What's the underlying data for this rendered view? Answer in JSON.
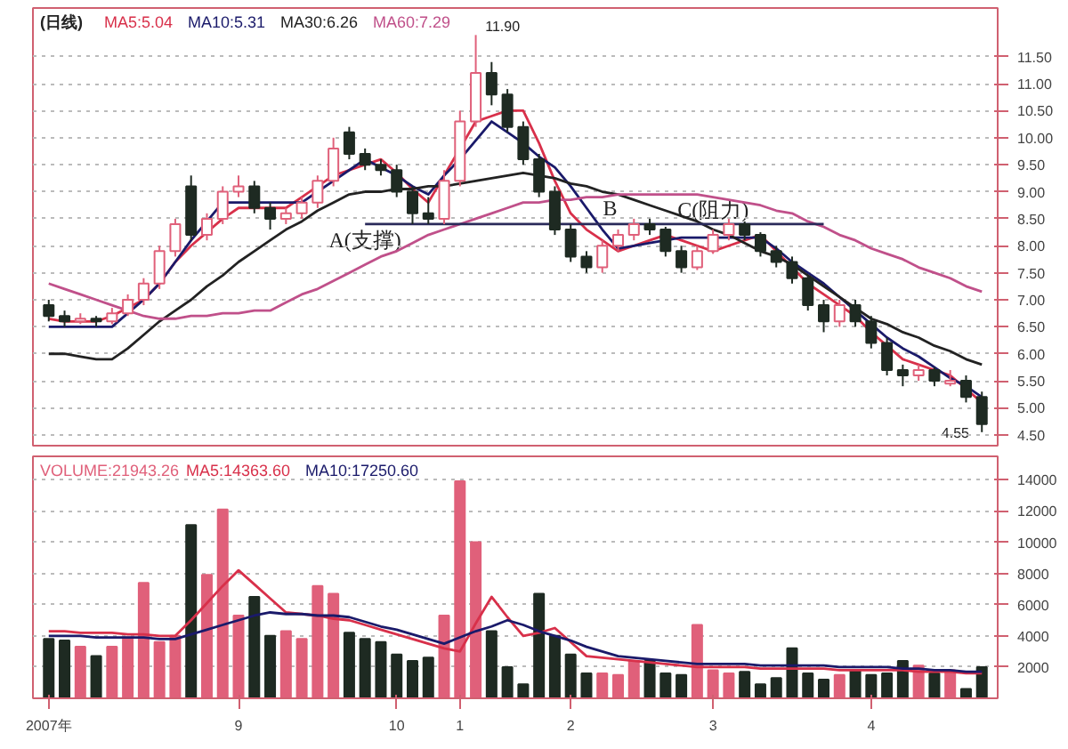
{
  "chart_data": [
    {
      "type": "candlestick",
      "title": "(日线)",
      "legend": "top left",
      "grid": "y",
      "tick_labels": "y",
      "categories": [
        null,
        null,
        null,
        null,
        null,
        null,
        null,
        null,
        null,
        null,
        null,
        null,
        null,
        null,
        null,
        null,
        null,
        null,
        null,
        null,
        null,
        null,
        null,
        null,
        null,
        null,
        null,
        null,
        null,
        null,
        null,
        null,
        null,
        null,
        null,
        null,
        null,
        null,
        null,
        null,
        null,
        null,
        null,
        null,
        null,
        null,
        null,
        null,
        null,
        null,
        null,
        null,
        null,
        null,
        null,
        null,
        null,
        null,
        null,
        null
      ],
      "ohlc": [
        [
          6.9,
          7.0,
          6.6,
          6.7
        ],
        [
          6.7,
          6.8,
          6.5,
          6.6
        ],
        [
          6.6,
          6.75,
          6.55,
          6.65
        ],
        [
          6.65,
          6.7,
          6.5,
          6.6
        ],
        [
          6.6,
          6.85,
          6.55,
          6.75
        ],
        [
          6.75,
          7.1,
          6.7,
          7.0
        ],
        [
          7.0,
          7.4,
          6.9,
          7.3
        ],
        [
          7.3,
          8.0,
          7.2,
          7.9
        ],
        [
          7.9,
          8.5,
          7.8,
          8.4
        ],
        [
          9.1,
          9.3,
          8.1,
          8.2
        ],
        [
          8.2,
          8.6,
          8.1,
          8.5
        ],
        [
          8.5,
          9.1,
          8.4,
          9.0
        ],
        [
          9.0,
          9.3,
          8.9,
          9.1
        ],
        [
          9.1,
          9.2,
          8.6,
          8.7
        ],
        [
          8.7,
          8.8,
          8.3,
          8.5
        ],
        [
          8.5,
          8.7,
          8.4,
          8.6
        ],
        [
          8.6,
          8.9,
          8.5,
          8.8
        ],
        [
          8.8,
          9.3,
          8.7,
          9.2
        ],
        [
          9.2,
          10.0,
          9.1,
          9.8
        ],
        [
          10.1,
          10.2,
          9.6,
          9.7
        ],
        [
          9.7,
          9.8,
          9.4,
          9.5
        ],
        [
          9.5,
          9.6,
          9.3,
          9.4
        ],
        [
          9.4,
          9.5,
          8.9,
          9.0
        ],
        [
          9.0,
          9.1,
          8.4,
          8.6
        ],
        [
          8.6,
          8.9,
          8.4,
          8.5
        ],
        [
          8.5,
          9.4,
          8.4,
          9.2
        ],
        [
          9.2,
          10.5,
          9.1,
          10.3
        ],
        [
          10.3,
          11.9,
          10.2,
          11.2
        ],
        [
          11.2,
          11.4,
          10.6,
          10.8
        ],
        [
          10.8,
          10.9,
          10.1,
          10.2
        ],
        [
          10.2,
          10.3,
          9.5,
          9.6
        ],
        [
          9.6,
          9.7,
          8.9,
          9.0
        ],
        [
          9.0,
          9.1,
          8.2,
          8.3
        ],
        [
          8.3,
          8.4,
          7.7,
          7.8
        ],
        [
          7.8,
          7.9,
          7.5,
          7.6
        ],
        [
          7.6,
          8.1,
          7.5,
          8.0
        ],
        [
          8.0,
          8.3,
          7.9,
          8.2
        ],
        [
          8.2,
          8.5,
          8.1,
          8.4
        ],
        [
          8.4,
          8.5,
          8.2,
          8.3
        ],
        [
          8.3,
          8.35,
          7.8,
          7.9
        ],
        [
          7.9,
          8.0,
          7.5,
          7.6
        ],
        [
          7.6,
          8.0,
          7.55,
          7.9
        ],
        [
          7.9,
          8.3,
          7.85,
          8.2
        ],
        [
          8.2,
          8.5,
          8.1,
          8.4
        ],
        [
          8.4,
          8.45,
          8.1,
          8.2
        ],
        [
          8.2,
          8.25,
          7.8,
          7.9
        ],
        [
          7.9,
          8.0,
          7.6,
          7.7
        ],
        [
          7.7,
          7.8,
          7.3,
          7.4
        ],
        [
          7.4,
          7.45,
          6.8,
          6.9
        ],
        [
          6.9,
          7.0,
          6.4,
          6.6
        ],
        [
          6.6,
          7.0,
          6.5,
          6.9
        ],
        [
          6.9,
          7.0,
          6.5,
          6.6
        ],
        [
          6.6,
          6.7,
          6.1,
          6.2
        ],
        [
          6.2,
          6.3,
          5.6,
          5.7
        ],
        [
          5.7,
          5.8,
          5.4,
          5.6
        ],
        [
          5.6,
          5.8,
          5.5,
          5.7
        ],
        [
          5.7,
          5.75,
          5.4,
          5.5
        ],
        [
          5.45,
          5.7,
          5.4,
          5.5
        ],
        [
          5.5,
          5.6,
          5.1,
          5.2
        ],
        [
          5.2,
          5.3,
          4.55,
          4.7
        ]
      ],
      "colors": [
        "#1e2a22",
        "#1e2a22",
        "#e0607a",
        "#1e2a22",
        "#e0607a",
        "#e0607a",
        "#e0607a",
        "#e0607a",
        "#e0607a",
        "#1e2a22",
        "#e0607a",
        "#e0607a",
        "#e0607a",
        "#1e2a22",
        "#1e2a22",
        "#e0607a",
        "#e0607a",
        "#e0607a",
        "#e0607a",
        "#1e2a22",
        "#1e2a22",
        "#1e2a22",
        "#1e2a22",
        "#1e2a22",
        "#1e2a22",
        "#e0607a",
        "#e0607a",
        "#e0607a",
        "#1e2a22",
        "#1e2a22",
        "#1e2a22",
        "#1e2a22",
        "#1e2a22",
        "#1e2a22",
        "#1e2a22",
        "#e0607a",
        "#e0607a",
        "#e0607a",
        "#1e2a22",
        "#1e2a22",
        "#1e2a22",
        "#e0607a",
        "#e0607a",
        "#e0607a",
        "#1e2a22",
        "#1e2a22",
        "#1e2a22",
        "#1e2a22",
        "#1e2a22",
        "#1e2a22",
        "#e0607a",
        "#1e2a22",
        "#1e2a22",
        "#1e2a22",
        "#1e2a22",
        "#e0607a",
        "#1e2a22",
        "#e0607a",
        "#1e2a22",
        "#1e2a22"
      ],
      "series": [
        {
          "name": "MA5:5.04",
          "type": "line",
          "color": "#d8304a",
          "values": [
            6.65,
            6.6,
            6.6,
            6.6,
            6.7,
            6.85,
            7.0,
            7.3,
            7.7,
            8.0,
            8.25,
            8.5,
            8.7,
            8.7,
            8.7,
            8.7,
            8.9,
            9.1,
            9.3,
            9.4,
            9.5,
            9.6,
            9.35,
            9.05,
            8.8,
            9.3,
            9.8,
            10.3,
            10.4,
            10.5,
            10.5,
            9.9,
            9.2,
            8.6,
            8.3,
            8.1,
            7.9,
            8.0,
            8.1,
            8.2,
            8.1,
            8.0,
            7.9,
            8.0,
            8.1,
            8.2,
            7.9,
            7.6,
            7.3,
            7.1,
            6.9,
            6.7,
            6.4,
            6.15,
            5.9,
            5.8,
            5.7,
            5.6,
            5.35,
            5.1
          ]
        },
        {
          "name": "MA10:5.31",
          "type": "line",
          "color": "#1a1a6a",
          "values": [
            6.5,
            6.5,
            6.5,
            6.5,
            6.5,
            6.75,
            7.0,
            7.3,
            7.7,
            8.1,
            8.45,
            8.8,
            8.8,
            8.8,
            8.8,
            8.8,
            8.8,
            9.0,
            9.2,
            9.4,
            9.6,
            9.45,
            9.3,
            9.1,
            8.95,
            9.3,
            9.6,
            9.95,
            10.3,
            10.1,
            9.9,
            9.65,
            9.45,
            9.1,
            8.7,
            8.3,
            7.95,
            8.0,
            8.05,
            8.1,
            8.15,
            8.15,
            8.15,
            8.15,
            8.15,
            8.15,
            7.95,
            7.7,
            7.5,
            7.3,
            7.05,
            6.8,
            6.55,
            6.3,
            6.1,
            5.95,
            5.75,
            5.55,
            5.4,
            5.2
          ]
        },
        {
          "name": "MA30:6.26",
          "type": "line",
          "color": "#222222",
          "values": [
            6.0,
            6.0,
            5.95,
            5.9,
            5.9,
            6.1,
            6.35,
            6.6,
            6.8,
            7.0,
            7.25,
            7.45,
            7.7,
            7.9,
            8.1,
            8.3,
            8.45,
            8.65,
            8.8,
            8.95,
            9.0,
            9.0,
            9.05,
            9.05,
            9.1,
            9.1,
            9.15,
            9.2,
            9.25,
            9.3,
            9.35,
            9.3,
            9.25,
            9.15,
            9.1,
            9.0,
            8.95,
            8.85,
            8.75,
            8.65,
            8.55,
            8.45,
            8.3,
            8.2,
            8.05,
            7.9,
            7.8,
            7.65,
            7.45,
            7.25,
            7.05,
            6.85,
            6.65,
            6.55,
            6.4,
            6.3,
            6.15,
            6.05,
            5.9,
            5.8
          ]
        },
        {
          "name": "MA60:7.29",
          "type": "line",
          "color": "#c0508a",
          "values": [
            7.3,
            7.2,
            7.1,
            7.0,
            6.9,
            6.8,
            6.7,
            6.65,
            6.65,
            6.7,
            6.7,
            6.75,
            6.75,
            6.8,
            6.8,
            6.95,
            7.1,
            7.2,
            7.35,
            7.5,
            7.65,
            7.8,
            7.9,
            8.05,
            8.2,
            8.3,
            8.4,
            8.5,
            8.6,
            8.7,
            8.8,
            8.8,
            8.85,
            8.85,
            8.9,
            8.9,
            8.95,
            8.95,
            8.95,
            8.95,
            8.95,
            8.95,
            8.9,
            8.85,
            8.8,
            8.75,
            8.65,
            8.6,
            8.45,
            8.35,
            8.2,
            8.1,
            7.95,
            7.85,
            7.75,
            7.6,
            7.5,
            7.4,
            7.25,
            7.15
          ]
        },
        {
          "type": "line",
          "color": "#2a2a5a",
          "values": [
            null,
            null,
            null,
            null,
            null,
            null,
            null,
            null,
            null,
            null,
            null,
            null,
            null,
            null,
            null,
            null,
            null,
            null,
            null,
            null,
            8.4,
            8.4,
            8.4,
            8.4,
            8.4,
            8.4,
            8.4,
            8.4,
            8.4,
            8.4,
            8.4,
            8.4,
            8.4,
            8.4,
            8.4,
            8.4,
            8.4,
            8.4,
            8.4,
            8.4,
            8.4,
            8.4,
            8.4,
            8.4,
            8.4,
            8.4,
            8.4,
            8.4,
            8.4,
            8.4,
            null,
            null,
            null,
            null,
            null,
            null,
            null,
            null,
            null,
            null
          ]
        }
      ],
      "annotations": [
        {
          "text": "A(支撑)",
          "y": 8.4
        },
        {
          "text": "B",
          "y": 8.4
        },
        {
          "text": "C(阻力)",
          "y": 8.4
        },
        "11.90",
        "4.55"
      ],
      "ylim": [
        4.3,
        12.4
      ],
      "yticks": [
        {
          "value": 4.5,
          "label": "4.50"
        },
        {
          "value": 5.0,
          "label": "5.00"
        },
        {
          "value": 5.5,
          "label": "5.50"
        },
        {
          "value": 6.0,
          "label": "6.00"
        },
        {
          "value": 6.5,
          "label": "6.50"
        },
        {
          "value": 7.0,
          "label": "7.00"
        },
        {
          "value": 7.5,
          "label": "7.50"
        },
        {
          "value": 8.0,
          "label": "8.00"
        },
        {
          "value": 8.5,
          "label": "8.50"
        },
        {
          "value": 9.0,
          "label": "9.00"
        },
        {
          "value": 9.5,
          "label": "9.50"
        },
        {
          "value": 10.0,
          "label": "10.00"
        },
        {
          "value": 10.5,
          "label": "10.50"
        },
        {
          "value": 11.0,
          "label": "11.00"
        },
        {
          "value": 11.5,
          "label": "11.50"
        }
      ]
    },
    {
      "type": "bar",
      "legend": "top left",
      "grid": "y",
      "categories": [
        "2007年",
        null,
        null,
        null,
        null,
        null,
        null,
        null,
        null,
        null,
        null,
        null,
        "9",
        null,
        null,
        null,
        null,
        null,
        null,
        null,
        null,
        null,
        "10",
        null,
        null,
        null,
        "1",
        null,
        null,
        null,
        null,
        null,
        null,
        "2",
        null,
        null,
        null,
        null,
        null,
        null,
        null,
        null,
        "3",
        null,
        null,
        null,
        null,
        null,
        null,
        null,
        null,
        null,
        "4",
        null,
        null,
        null,
        null,
        null,
        null,
        null
      ],
      "series": [
        {
          "name": "VOLUME:21943.26",
          "type": "bar",
          "color": "#e0607a",
          "values": [
            3800,
            3700,
            3300,
            2700,
            3300,
            3900,
            7400,
            3600,
            4000,
            11100,
            7900,
            12100,
            5300,
            6500,
            4000,
            4300,
            3800,
            7200,
            6700,
            4200,
            3800,
            3600,
            2800,
            2400,
            2600,
            5300,
            13900,
            10000,
            4300,
            2000,
            900,
            6700,
            4000,
            2800,
            1600,
            1600,
            1500,
            2400,
            2400,
            1600,
            1500,
            4700,
            1800,
            1600,
            1700,
            900,
            1300,
            3200,
            1600,
            1200,
            1500,
            1800,
            1500,
            1600,
            2400,
            2100,
            1600,
            1800,
            600,
            2000
          ],
          "colors": [
            "#1e2a22",
            "#1e2a22",
            "#e0607a",
            "#1e2a22",
            "#e0607a",
            "#e0607a",
            "#e0607a",
            "#e0607a",
            "#e0607a",
            "#1e2a22",
            "#e0607a",
            "#e0607a",
            "#e0607a",
            "#1e2a22",
            "#1e2a22",
            "#e0607a",
            "#e0607a",
            "#e0607a",
            "#e0607a",
            "#1e2a22",
            "#1e2a22",
            "#1e2a22",
            "#1e2a22",
            "#1e2a22",
            "#1e2a22",
            "#e0607a",
            "#e0607a",
            "#e0607a",
            "#1e2a22",
            "#1e2a22",
            "#1e2a22",
            "#1e2a22",
            "#1e2a22",
            "#1e2a22",
            "#1e2a22",
            "#e0607a",
            "#e0607a",
            "#e0607a",
            "#1e2a22",
            "#1e2a22",
            "#1e2a22",
            "#e0607a",
            "#e0607a",
            "#e0607a",
            "#1e2a22",
            "#1e2a22",
            "#1e2a22",
            "#1e2a22",
            "#1e2a22",
            "#1e2a22",
            "#e0607a",
            "#1e2a22",
            "#1e2a22",
            "#1e2a22",
            "#1e2a22",
            "#e0607a",
            "#1e2a22",
            "#e0607a",
            "#1e2a22",
            "#1e2a22"
          ]
        },
        {
          "name": "MA5:14363.60",
          "type": "line",
          "color": "#d8304a",
          "values": [
            4300,
            4300,
            4200,
            4200,
            4200,
            4100,
            4100,
            4000,
            4000,
            5000,
            6100,
            7200,
            8200,
            7300,
            6400,
            5500,
            5400,
            5300,
            5100,
            5000,
            4700,
            4400,
            4100,
            3800,
            3500,
            3200,
            3000,
            4800,
            6500,
            5200,
            4000,
            4200,
            4500,
            3600,
            2700,
            2600,
            2500,
            2400,
            2300,
            2200,
            2100,
            2000,
            2000,
            2000,
            2000,
            1900,
            1900,
            1900,
            1900,
            1900,
            1800,
            1800,
            1800,
            1800,
            1800,
            1700,
            1700,
            1700,
            1600,
            1600
          ]
        },
        {
          "name": "MA10:17250.60",
          "type": "line",
          "color": "#1a1a6a",
          "values": [
            4000,
            4000,
            4000,
            3900,
            3900,
            3900,
            3900,
            3800,
            3800,
            4100,
            4400,
            4700,
            5000,
            5300,
            5500,
            5400,
            5400,
            5300,
            5300,
            5200,
            4900,
            4600,
            4400,
            4100,
            3800,
            3500,
            3900,
            4300,
            4600,
            5000,
            4700,
            4300,
            4000,
            3700,
            3300,
            3000,
            2700,
            2600,
            2500,
            2400,
            2300,
            2200,
            2200,
            2200,
            2200,
            2100,
            2100,
            2100,
            2100,
            2100,
            2000,
            2000,
            2000,
            2000,
            1900,
            1900,
            1800,
            1800,
            1700,
            1700
          ]
        }
      ],
      "ylim": [
        0,
        15500
      ],
      "yticks": [
        2000,
        4000,
        6000,
        8000,
        10000,
        12000,
        14000
      ]
    }
  ]
}
